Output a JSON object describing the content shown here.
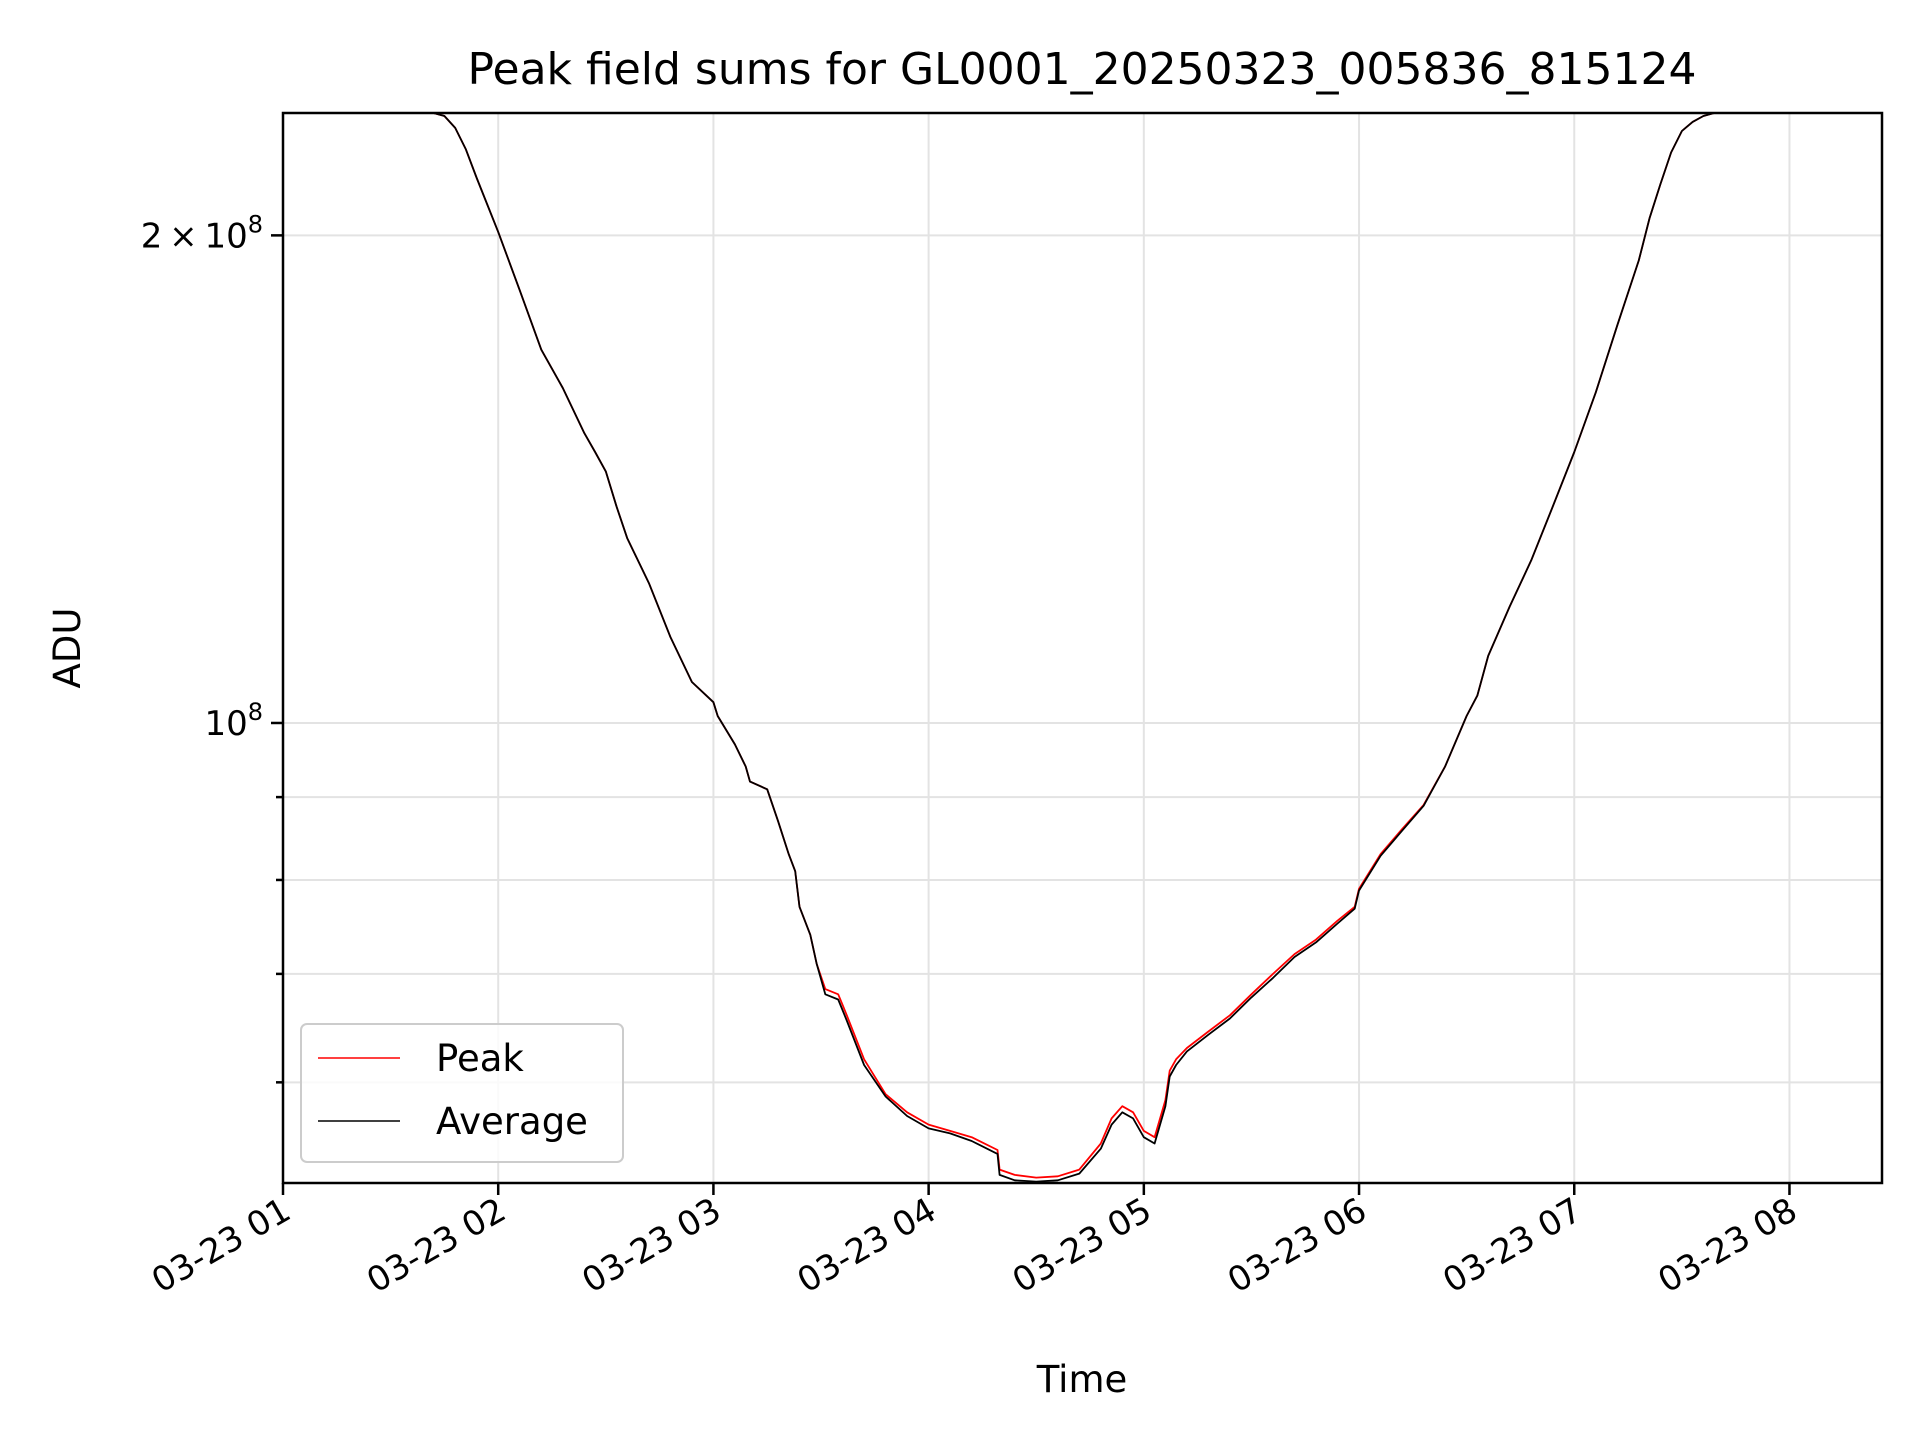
{
  "chart_data": {
    "type": "line",
    "title": "Peak field sums for GL0001_20250323_005836_815124",
    "xlabel": "Time",
    "ylabel": "ADU",
    "x_unit": "hour of 2025-03-23",
    "xlim": [
      1.0,
      8.43
    ],
    "ylim": [
      52000000,
      238000000
    ],
    "yscale": "log",
    "grid": true,
    "legend": "lower-left",
    "x_ticks": [
      1,
      2,
      3,
      4,
      5,
      6,
      7,
      8
    ],
    "x_tick_labels": [
      "03-23 01",
      "03-23 02",
      "03-23 03",
      "03-23 04",
      "03-23 05",
      "03-23 06",
      "03-23 07",
      "03-23 08"
    ],
    "y_ticks": [
      {
        "value": 100000000,
        "base": "10",
        "exp": "8",
        "coef": ""
      },
      {
        "value": 200000000,
        "base": "10",
        "exp": "8",
        "coef": "2 × "
      }
    ],
    "y_minor_ticks": [
      60000000,
      70000000,
      80000000,
      90000000
    ],
    "colors": {
      "peak": "#ff0000",
      "average": "#000000"
    },
    "x": [
      1.7,
      1.75,
      1.8,
      1.85,
      1.9,
      2.0,
      2.1,
      2.2,
      2.3,
      2.4,
      2.45,
      2.5,
      2.55,
      2.6,
      2.7,
      2.8,
      2.9,
      3.0,
      3.02,
      3.1,
      3.15,
      3.17,
      3.25,
      3.3,
      3.35,
      3.38,
      3.4,
      3.45,
      3.48,
      3.52,
      3.58,
      3.6,
      3.62,
      3.7,
      3.8,
      3.9,
      4.0,
      4.1,
      4.2,
      4.32,
      4.33,
      4.4,
      4.5,
      4.6,
      4.7,
      4.8,
      4.85,
      4.9,
      4.95,
      5.0,
      5.05,
      5.1,
      5.12,
      5.15,
      5.2,
      5.3,
      5.4,
      5.5,
      5.6,
      5.7,
      5.8,
      5.9,
      5.98,
      6.0,
      6.1,
      6.2,
      6.3,
      6.4,
      6.5,
      6.55,
      6.6,
      6.7,
      6.8,
      6.9,
      7.0,
      7.1,
      7.2,
      7.3,
      7.35,
      7.4,
      7.45,
      7.5,
      7.55,
      7.6,
      7.65
    ],
    "series": [
      {
        "name": "Peak",
        "values": [
          238000000,
          237000000,
          233000000,
          226000000,
          217000000,
          201000000,
          185000000,
          170000000,
          161000000,
          151000000,
          147000000,
          143000000,
          136000000,
          130000000,
          122000000,
          113000000,
          106000000,
          103000000,
          101000000,
          97000000,
          94000000,
          92000000,
          91000000,
          87000000,
          83000000,
          81000000,
          77000000,
          74000000,
          71000000,
          68500000,
          68000000,
          67000000,
          66000000,
          62000000,
          59000000,
          57500000,
          56500000,
          56000000,
          55500000,
          54500000,
          53000000,
          52600000,
          52400000,
          52500000,
          53000000,
          55000000,
          57000000,
          58000000,
          57500000,
          56000000,
          55500000,
          58500000,
          61000000,
          62000000,
          63000000,
          64500000,
          66000000,
          68000000,
          70000000,
          72000000,
          73500000,
          75500000,
          77000000,
          79000000,
          83000000,
          86000000,
          89000000,
          94000000,
          101000000,
          104000000,
          110000000,
          118000000,
          126000000,
          136000000,
          147000000,
          160000000,
          176000000,
          193000000,
          205000000,
          215000000,
          225000000,
          232000000,
          235000000,
          237000000,
          238000000
        ]
      },
      {
        "name": "Average",
        "values": [
          238000000,
          237000000,
          233000000,
          226000000,
          217000000,
          201000000,
          185000000,
          170000000,
          161000000,
          151000000,
          147000000,
          143000000,
          136000000,
          130000000,
          122000000,
          113000000,
          106000000,
          103000000,
          101000000,
          97000000,
          94000000,
          92000000,
          91000000,
          87000000,
          83000000,
          81000000,
          77000000,
          74000000,
          71000000,
          68000000,
          67500000,
          66500000,
          65500000,
          61500000,
          58800000,
          57200000,
          56200000,
          55800000,
          55200000,
          54200000,
          52600000,
          52200000,
          52100000,
          52200000,
          52700000,
          54600000,
          56500000,
          57500000,
          57000000,
          55500000,
          55000000,
          58000000,
          60500000,
          61500000,
          62700000,
          64200000,
          65700000,
          67700000,
          69600000,
          71700000,
          73200000,
          75200000,
          76800000,
          78800000,
          82800000,
          85800000,
          88900000,
          94000000,
          101000000,
          104000000,
          110000000,
          118000000,
          126000000,
          136000000,
          147000000,
          160000000,
          176000000,
          193000000,
          205000000,
          215000000,
          225000000,
          232000000,
          235000000,
          237000000,
          238000000
        ]
      }
    ]
  }
}
